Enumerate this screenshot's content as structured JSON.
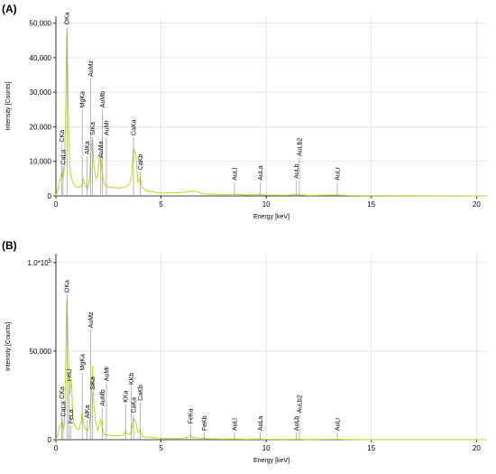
{
  "chart_data": [
    {
      "panel": "(A)",
      "type": "line",
      "xlabel": "Energy [keV]",
      "ylabel": "Intensity [Counts]",
      "xlim": [
        0,
        20.5
      ],
      "ylim": [
        0,
        52000
      ],
      "xticks": [
        0,
        5,
        10,
        15,
        20
      ],
      "yticks": [
        0,
        10000,
        20000,
        30000,
        40000,
        50000
      ],
      "yticklabels": [
        "0",
        "10,000",
        "20,000",
        "30,000",
        "40,000",
        "50,000"
      ],
      "grid": true,
      "series_color": "#b6df2e",
      "spectrum": {
        "x": [
          0.0,
          0.1,
          0.2,
          0.28,
          0.3,
          0.33,
          0.36,
          0.4,
          0.45,
          0.5,
          0.525,
          0.55,
          0.6,
          0.65,
          0.7,
          0.8,
          0.9,
          1.0,
          1.1,
          1.2,
          1.25,
          1.3,
          1.35,
          1.4,
          1.5,
          1.6,
          1.7,
          1.74,
          1.8,
          1.9,
          2.0,
          2.05,
          2.12,
          2.2,
          2.3,
          2.5,
          3.0,
          3.3,
          3.5,
          3.6,
          3.69,
          3.8,
          3.9,
          4.01,
          4.1,
          4.3,
          5.0,
          6.0,
          6.6,
          7.0,
          8.0,
          8.49,
          9.0,
          9.7,
          10.0,
          11.0,
          11.44,
          12.0,
          13.4,
          14.0,
          15.0,
          17.0,
          20.0,
          20.5
        ],
        "y": [
          0,
          2000,
          5000,
          7000,
          6000,
          5500,
          6000,
          8000,
          20000,
          42000,
          48000,
          40000,
          20000,
          10000,
          6000,
          4000,
          3000,
          2500,
          2500,
          2800,
          3500,
          5000,
          4000,
          3000,
          2000,
          5000,
          15000,
          16500,
          9000,
          5000,
          6000,
          10000,
          11500,
          7000,
          3500,
          2500,
          2300,
          2500,
          3500,
          6000,
          14000,
          12000,
          4000,
          5000,
          2500,
          1500,
          800,
          1000,
          1500,
          600,
          350,
          500,
          300,
          450,
          250,
          200,
          400,
          150,
          300,
          100,
          80,
          50,
          30,
          20
        ]
      },
      "peaks": [
        {
          "label": "CaLa",
          "x": 0.34,
          "y": 8500
        },
        {
          "label": "CKa",
          "x": 0.28,
          "y": 15000
        },
        {
          "label": "OKa",
          "x": 0.525,
          "y": 49000
        },
        {
          "label": "MgKa",
          "x": 1.25,
          "y": 25000
        },
        {
          "label": "AlKa",
          "x": 1.49,
          "y": 11500
        },
        {
          "label": "SiKa",
          "x": 1.74,
          "y": 17000
        },
        {
          "label": "AuMz",
          "x": 1.66,
          "y": 34000
        },
        {
          "label": "AuMb",
          "x": 2.2,
          "y": 25000
        },
        {
          "label": "AuMa",
          "x": 2.12,
          "y": 10500
        },
        {
          "label": "AuMr",
          "x": 2.4,
          "y": 17000
        },
        {
          "label": "CaKa",
          "x": 3.69,
          "y": 17000
        },
        {
          "label": "CaKb",
          "x": 4.01,
          "y": 7000
        },
        {
          "label": "AuLl",
          "x": 8.49,
          "y": 4000
        },
        {
          "label": "AuLa",
          "x": 9.71,
          "y": 4000
        },
        {
          "label": "AuLb",
          "x": 11.44,
          "y": 4500
        },
        {
          "label": "AuLb2",
          "x": 11.58,
          "y": 11000
        },
        {
          "label": "AuLr",
          "x": 13.38,
          "y": 4000
        }
      ]
    },
    {
      "panel": "(B)",
      "type": "line",
      "xlabel": "Energy [keV]",
      "ylabel": "Intensity [Counts]",
      "xlim": [
        0,
        20.5
      ],
      "ylim": [
        0,
        105000
      ],
      "xticks": [
        0,
        5,
        10,
        15,
        20
      ],
      "yticks": [
        0,
        50000,
        100000
      ],
      "yticklabels": [
        "0",
        "50,000",
        "1.0*10^5"
      ],
      "grid": true,
      "series_color": "#b6df2e",
      "spectrum": {
        "x": [
          0.0,
          0.1,
          0.2,
          0.28,
          0.32,
          0.36,
          0.4,
          0.45,
          0.5,
          0.525,
          0.56,
          0.6,
          0.65,
          0.7,
          0.72,
          0.76,
          0.8,
          0.9,
          1.0,
          1.1,
          1.2,
          1.25,
          1.3,
          1.35,
          1.4,
          1.5,
          1.6,
          1.7,
          1.74,
          1.8,
          1.9,
          2.0,
          2.12,
          2.2,
          2.3,
          2.5,
          3.0,
          3.2,
          3.31,
          3.4,
          3.5,
          3.6,
          3.69,
          3.8,
          3.9,
          4.01,
          4.1,
          4.3,
          5.0,
          6.0,
          6.3,
          6.4,
          6.5,
          7.0,
          7.06,
          7.2,
          8.0,
          8.49,
          9.0,
          9.71,
          10.0,
          11.0,
          11.44,
          12.0,
          13.38,
          14.0,
          15.0,
          17.0,
          20.0,
          20.5
        ],
        "y": [
          0,
          3000,
          8000,
          10000,
          7000,
          6000,
          8000,
          30000,
          70000,
          80000,
          65000,
          45000,
          25000,
          30000,
          35000,
          28000,
          12000,
          8000,
          6000,
          6000,
          10000,
          15000,
          10000,
          8000,
          6000,
          5000,
          8000,
          30000,
          42000,
          20000,
          9000,
          5000,
          12000,
          7000,
          3000,
          2500,
          2200,
          2500,
          5000,
          3000,
          3000,
          5000,
          12000,
          10000,
          4000,
          5000,
          2000,
          1500,
          800,
          700,
          1500,
          2500,
          1200,
          700,
          1000,
          500,
          350,
          400,
          300,
          400,
          200,
          150,
          300,
          100,
          250,
          80,
          60,
          40,
          30,
          20
        ]
      },
      "peaks": [
        {
          "label": "CaLa",
          "x": 0.34,
          "y": 12000
        },
        {
          "label": "CKa",
          "x": 0.28,
          "y": 22000
        },
        {
          "label": "FeLa",
          "x": 0.71,
          "y": 8000
        },
        {
          "label": "FeLl",
          "x": 0.63,
          "y": 32000
        },
        {
          "label": "OKa",
          "x": 0.525,
          "y": 82000
        },
        {
          "label": "MgKa",
          "x": 1.25,
          "y": 38000
        },
        {
          "label": "AlKa",
          "x": 1.49,
          "y": 11000
        },
        {
          "label": "SiKa",
          "x": 1.74,
          "y": 27000
        },
        {
          "label": "AuMz",
          "x": 1.66,
          "y": 62000
        },
        {
          "label": "AuMb",
          "x": 2.2,
          "y": 18000
        },
        {
          "label": "AuMr",
          "x": 2.4,
          "y": 32000
        },
        {
          "label": "KKa",
          "x": 3.31,
          "y": 20000
        },
        {
          "label": "KKb",
          "x": 3.59,
          "y": 30000
        },
        {
          "label": "CaKa",
          "x": 3.69,
          "y": 14000
        },
        {
          "label": "CaKb",
          "x": 4.01,
          "y": 21000
        },
        {
          "label": "FeKa",
          "x": 6.4,
          "y": 8000
        },
        {
          "label": "FeKb",
          "x": 7.06,
          "y": 4000
        },
        {
          "label": "AuLl",
          "x": 8.49,
          "y": 4000
        },
        {
          "label": "AuLa",
          "x": 9.71,
          "y": 4000
        },
        {
          "label": "AuLb",
          "x": 11.44,
          "y": 4000
        },
        {
          "label": "AuLb2",
          "x": 11.58,
          "y": 14000
        },
        {
          "label": "AuLr",
          "x": 13.38,
          "y": 4000
        }
      ]
    }
  ]
}
